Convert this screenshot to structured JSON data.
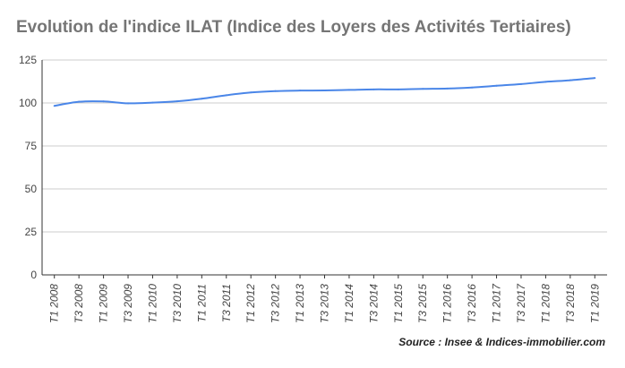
{
  "chart_data": {
    "type": "line",
    "title": "Evolution de l'indice ILAT (Indice des Loyers des Activités Tertiaires)",
    "xlabel": "",
    "ylabel": "",
    "ylim": [
      0,
      125
    ],
    "yticks": [
      "0",
      "25",
      "50",
      "75",
      "100",
      "125"
    ],
    "grid": true,
    "legend": "none",
    "categories": [
      "T1 2008",
      "T3 2008",
      "T1 2009",
      "T3 2009",
      "T1 2010",
      "T3 2010",
      "T1 2011",
      "T3 2011",
      "T1 2012",
      "T3 2012",
      "T1 2013",
      "T3 2013",
      "T1 2014",
      "T3 2014",
      "T1 2015",
      "T3 2015",
      "T1 2016",
      "T3 2016",
      "T1 2017",
      "T3 2017",
      "T1 2018",
      "T3 2018",
      "T1 2019"
    ],
    "series": [
      {
        "color": "#4a86e8",
        "values": [
          98.3,
          100.7,
          100.9,
          99.8,
          100.2,
          101.0,
          102.5,
          104.5,
          106.1,
          106.9,
          107.2,
          107.3,
          107.6,
          107.9,
          107.9,
          108.2,
          108.4,
          109.0,
          110.0,
          111.0,
          112.3,
          113.2,
          114.5
        ]
      }
    ]
  },
  "source": "Source : Insee & Indices-immobilier.com",
  "colors": {
    "axis": "#333333",
    "grid": "#cccccc",
    "text": "#444444",
    "title": "#757575"
  }
}
